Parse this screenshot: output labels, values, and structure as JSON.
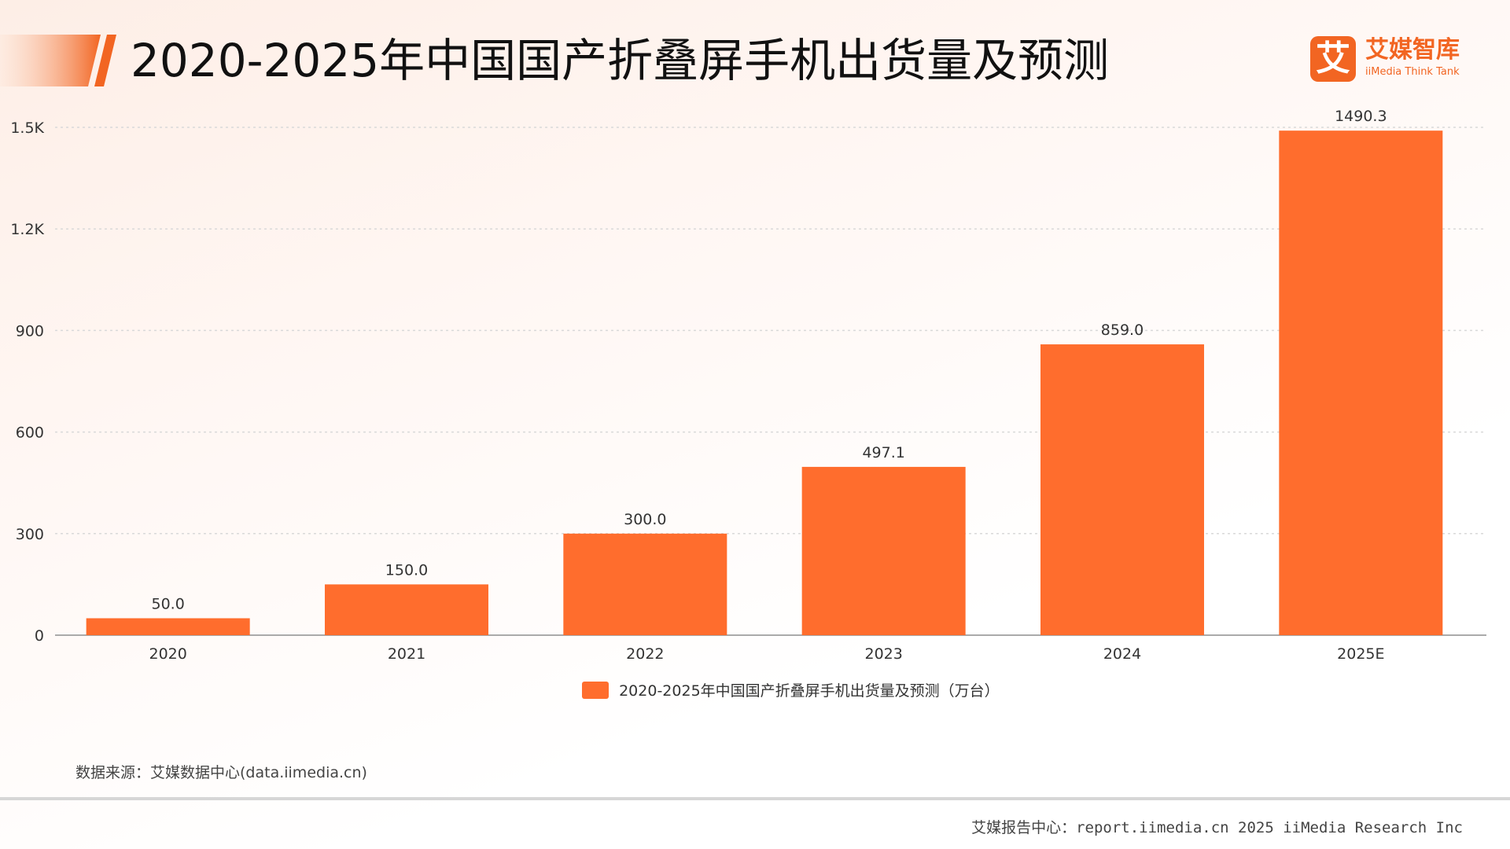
{
  "header": {
    "title": "2020-2025年中国国产折叠屏手机出货量及预测"
  },
  "logo": {
    "mark": "艾",
    "name_cn": "艾媒智库",
    "name_en": "iiMedia Think Tank"
  },
  "colors": {
    "bar": "#ff6d2d",
    "accent": "#f26522"
  },
  "chart_data": {
    "type": "bar",
    "title": "2020-2025年中国国产折叠屏手机出货量及预测",
    "categories": [
      "2020",
      "2021",
      "2022",
      "2023",
      "2024",
      "2025E"
    ],
    "series": [
      {
        "name": "2020-2025年中国国产折叠屏手机出货量及预测（万台）",
        "values": [
          50.0,
          150.0,
          300.0,
          497.1,
          859.0,
          1490.3
        ],
        "labels": [
          "50.0",
          "150.0",
          "300.0",
          "497.1",
          "859.0",
          "1490.3"
        ]
      }
    ],
    "ylim": [
      0,
      1500
    ],
    "yticks": [
      0,
      300,
      600,
      900,
      1200,
      1500
    ],
    "ytick_labels": [
      "0",
      "300",
      "600",
      "900",
      "1.2K",
      "1.5K"
    ],
    "grid": true,
    "legend_position": "bottom"
  },
  "legend": {
    "label": "2020-2025年中国国产折叠屏手机出货量及预测（万台）"
  },
  "source": "数据来源：艾媒数据中心(data.iimedia.cn)",
  "footer": "艾媒报告中心：report.iimedia.cn   2025 iiMedia Research Inc"
}
